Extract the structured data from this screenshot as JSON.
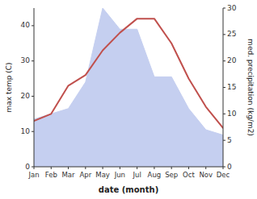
{
  "chart_data": {
    "type": "line",
    "xlabel": "date (month)",
    "ylabel": "max temp (C)",
    "y2label": "med. precipitation (kg/m2)",
    "categories": [
      "Jan",
      "Feb",
      "Mar",
      "Apr",
      "May",
      "Jun",
      "Jul",
      "Aug",
      "Sep",
      "Oct",
      "Nov",
      "Dec"
    ],
    "series": [
      {
        "type": "area",
        "axis": "y2",
        "color": "#c5cff0",
        "values": [
          9,
          10,
          11,
          16,
          30,
          26,
          26,
          17,
          17,
          11,
          7,
          6
        ]
      },
      {
        "type": "line",
        "color": "#c0504d",
        "values": [
          13,
          15,
          23,
          26,
          33,
          38,
          42,
          42,
          35,
          25,
          17,
          11
        ]
      }
    ],
    "ylim": [
      0,
      45
    ],
    "yticks": [
      0,
      10,
      20,
      30,
      40
    ],
    "y2lim": [
      0,
      30
    ],
    "y2ticks": [
      0,
      5,
      10,
      15,
      20,
      25,
      30
    ],
    "grid": false
  }
}
